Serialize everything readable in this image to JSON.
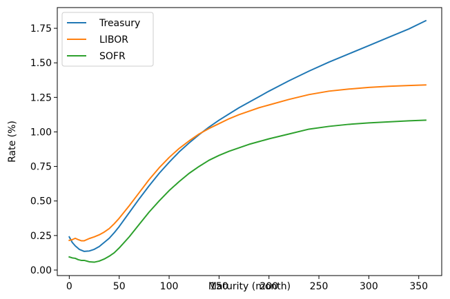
{
  "chart_data": {
    "type": "line",
    "title": "",
    "xlabel": "Maturity (month)",
    "ylabel": "Rate (%)",
    "xlim": [
      -12,
      373
    ],
    "ylim": [
      -0.04,
      1.9
    ],
    "xticks": [
      0,
      50,
      100,
      150,
      200,
      250,
      300,
      350
    ],
    "yticks": [
      0.0,
      0.25,
      0.5,
      0.75,
      1.0,
      1.25,
      1.5,
      1.75
    ],
    "grid": false,
    "legend_position": "top-left",
    "series": [
      {
        "name": "Treasury",
        "color": "#1f77b4",
        "points": [
          [
            0,
            0.24
          ],
          [
            3,
            0.2
          ],
          [
            6,
            0.175
          ],
          [
            10,
            0.15
          ],
          [
            15,
            0.135
          ],
          [
            20,
            0.138
          ],
          [
            25,
            0.15
          ],
          [
            30,
            0.17
          ],
          [
            35,
            0.2
          ],
          [
            40,
            0.23
          ],
          [
            45,
            0.27
          ],
          [
            50,
            0.315
          ],
          [
            60,
            0.415
          ],
          [
            70,
            0.515
          ],
          [
            80,
            0.61
          ],
          [
            90,
            0.7
          ],
          [
            100,
            0.78
          ],
          [
            110,
            0.855
          ],
          [
            120,
            0.92
          ],
          [
            130,
            0.98
          ],
          [
            140,
            1.035
          ],
          [
            150,
            1.085
          ],
          [
            160,
            1.13
          ],
          [
            170,
            1.175
          ],
          [
            180,
            1.215
          ],
          [
            190,
            1.255
          ],
          [
            200,
            1.295
          ],
          [
            220,
            1.37
          ],
          [
            240,
            1.44
          ],
          [
            260,
            1.505
          ],
          [
            280,
            1.565
          ],
          [
            300,
            1.625
          ],
          [
            320,
            1.685
          ],
          [
            340,
            1.745
          ],
          [
            357,
            1.805
          ]
        ]
      },
      {
        "name": "LIBOR",
        "color": "#ff7f0e",
        "points": [
          [
            0,
            0.215
          ],
          [
            3,
            0.22
          ],
          [
            6,
            0.23
          ],
          [
            9,
            0.22
          ],
          [
            12,
            0.212
          ],
          [
            15,
            0.212
          ],
          [
            20,
            0.228
          ],
          [
            25,
            0.24
          ],
          [
            30,
            0.255
          ],
          [
            35,
            0.275
          ],
          [
            40,
            0.3
          ],
          [
            45,
            0.335
          ],
          [
            50,
            0.375
          ],
          [
            60,
            0.465
          ],
          [
            70,
            0.56
          ],
          [
            80,
            0.655
          ],
          [
            90,
            0.74
          ],
          [
            100,
            0.815
          ],
          [
            110,
            0.88
          ],
          [
            120,
            0.935
          ],
          [
            130,
            0.985
          ],
          [
            140,
            1.025
          ],
          [
            150,
            1.06
          ],
          [
            160,
            1.095
          ],
          [
            170,
            1.125
          ],
          [
            180,
            1.15
          ],
          [
            190,
            1.175
          ],
          [
            200,
            1.195
          ],
          [
            220,
            1.235
          ],
          [
            240,
            1.27
          ],
          [
            260,
            1.295
          ],
          [
            280,
            1.31
          ],
          [
            300,
            1.322
          ],
          [
            320,
            1.33
          ],
          [
            340,
            1.336
          ],
          [
            357,
            1.34
          ]
        ]
      },
      {
        "name": "SOFR",
        "color": "#2ca02c",
        "points": [
          [
            0,
            0.095
          ],
          [
            3,
            0.088
          ],
          [
            6,
            0.085
          ],
          [
            9,
            0.075
          ],
          [
            12,
            0.07
          ],
          [
            15,
            0.07
          ],
          [
            20,
            0.06
          ],
          [
            25,
            0.057
          ],
          [
            30,
            0.065
          ],
          [
            35,
            0.08
          ],
          [
            40,
            0.1
          ],
          [
            45,
            0.125
          ],
          [
            50,
            0.16
          ],
          [
            60,
            0.24
          ],
          [
            70,
            0.33
          ],
          [
            80,
            0.42
          ],
          [
            90,
            0.5
          ],
          [
            100,
            0.575
          ],
          [
            110,
            0.64
          ],
          [
            120,
            0.7
          ],
          [
            130,
            0.75
          ],
          [
            140,
            0.795
          ],
          [
            150,
            0.83
          ],
          [
            160,
            0.86
          ],
          [
            170,
            0.885
          ],
          [
            180,
            0.91
          ],
          [
            190,
            0.93
          ],
          [
            200,
            0.95
          ],
          [
            220,
            0.985
          ],
          [
            240,
            1.02
          ],
          [
            260,
            1.04
          ],
          [
            280,
            1.055
          ],
          [
            300,
            1.065
          ],
          [
            320,
            1.073
          ],
          [
            340,
            1.08
          ],
          [
            357,
            1.085
          ]
        ]
      }
    ]
  }
}
